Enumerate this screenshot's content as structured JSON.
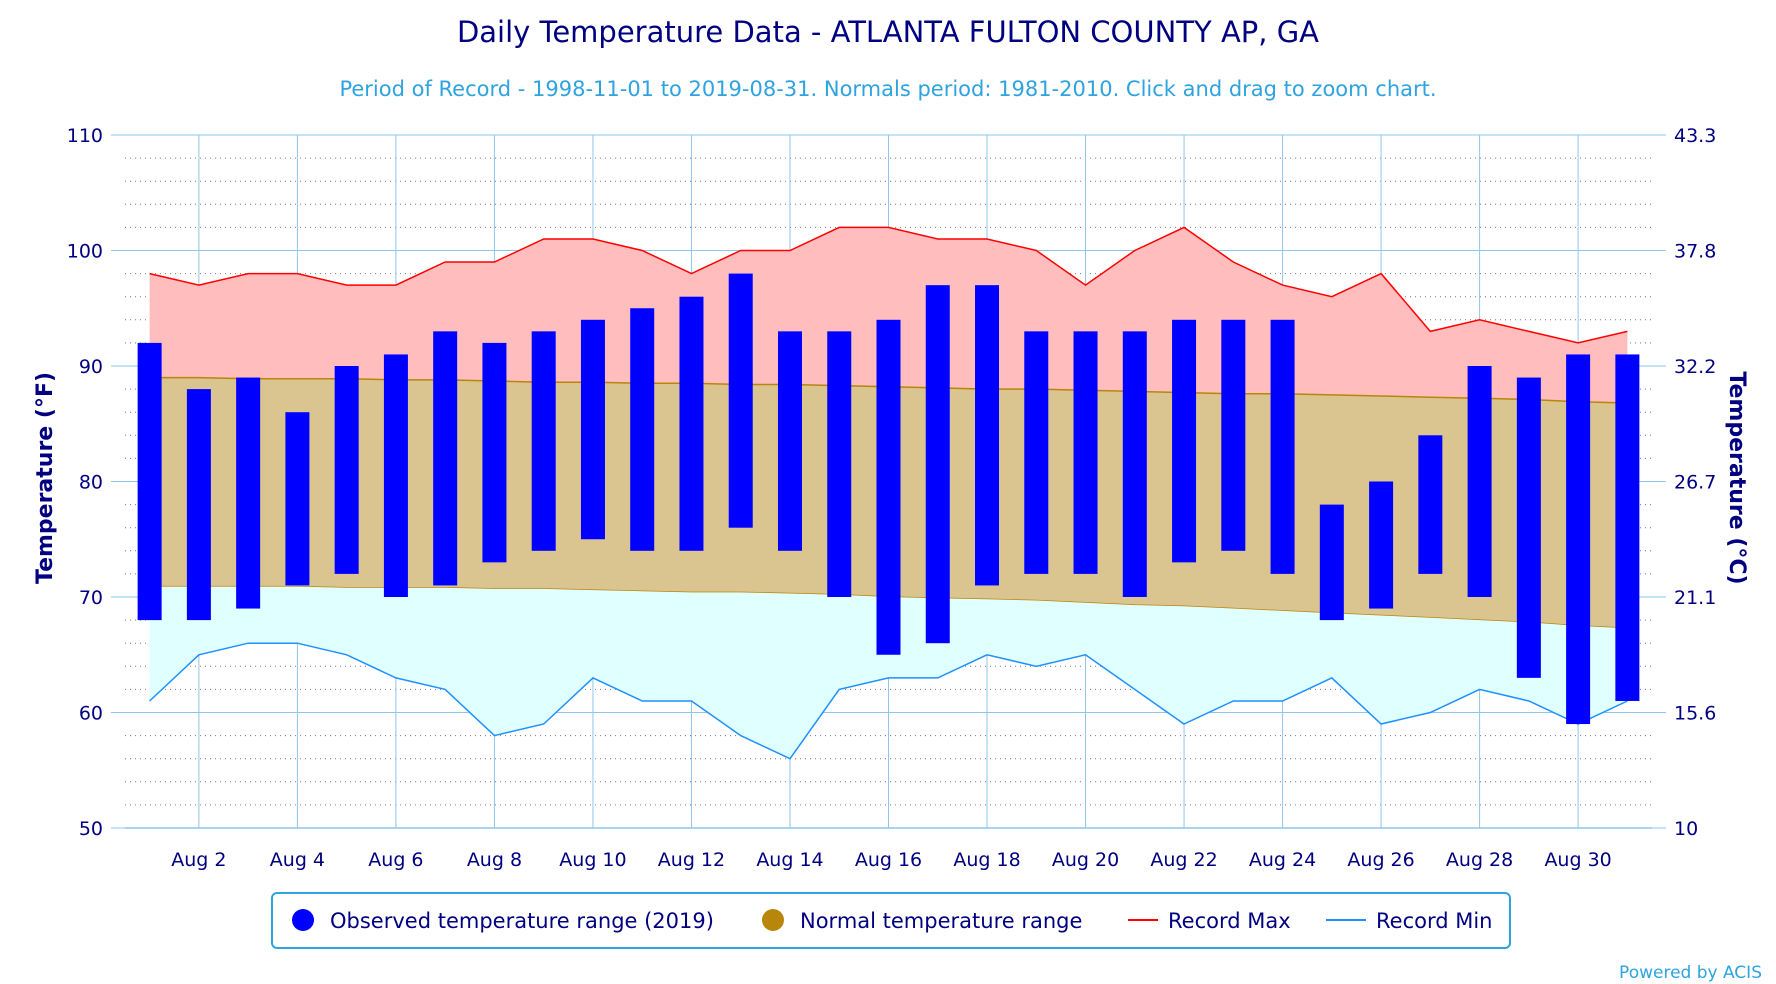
{
  "chart_data": {
    "type": "bar",
    "title": "Daily Temperature Data - ATLANTA FULTON COUNTY AP, GA",
    "subtitle": "Period of Record - 1998-11-01 to 2019-08-31. Normals period: 1981-2010. Click and drag to zoom chart.",
    "ylabel": "Temperature (°F)",
    "ylabel_right": "Temperature (°C)",
    "ylim": [
      50,
      110
    ],
    "yticks": [
      50,
      60,
      70,
      80,
      90,
      100,
      110
    ],
    "yticks_right": [
      "10",
      "15.6",
      "21.1",
      "26.7",
      "32.2",
      "37.8",
      "43.3"
    ],
    "xlim": [
      0.5,
      31.5
    ],
    "xticks": [
      2,
      4,
      6,
      8,
      10,
      12,
      14,
      16,
      18,
      20,
      22,
      24,
      26,
      28,
      30
    ],
    "xtick_labels": [
      "Aug 2",
      "Aug 4",
      "Aug 6",
      "Aug 8",
      "Aug 10",
      "Aug 12",
      "Aug 14",
      "Aug 16",
      "Aug 18",
      "Aug 20",
      "Aug 22",
      "Aug 24",
      "Aug 26",
      "Aug 28",
      "Aug 30"
    ],
    "grid": true,
    "legend_position": "bottom",
    "days": [
      1,
      2,
      3,
      4,
      5,
      6,
      7,
      8,
      9,
      10,
      11,
      12,
      13,
      14,
      15,
      16,
      17,
      18,
      19,
      20,
      21,
      22,
      23,
      24,
      25,
      26,
      27,
      28,
      29,
      30,
      31
    ],
    "observed_min": [
      68,
      68,
      69,
      71,
      72,
      70,
      71,
      73,
      74,
      75,
      74,
      74,
      76,
      74,
      70,
      65,
      66,
      71,
      72,
      72,
      70,
      73,
      74,
      72,
      68,
      69,
      72,
      70,
      63,
      59,
      61
    ],
    "observed_max": [
      92,
      88,
      89,
      86,
      90,
      91,
      93,
      92,
      93,
      94,
      95,
      96,
      98,
      93,
      93,
      94,
      97,
      97,
      93,
      93,
      93,
      94,
      94,
      94,
      78,
      80,
      84,
      90,
      89,
      91,
      91
    ],
    "normal_min": [
      70.9,
      70.9,
      70.9,
      70.9,
      70.8,
      70.8,
      70.8,
      70.7,
      70.7,
      70.6,
      70.5,
      70.4,
      70.4,
      70.3,
      70.2,
      70.0,
      69.9,
      69.8,
      69.7,
      69.5,
      69.3,
      69.2,
      69.0,
      68.8,
      68.6,
      68.4,
      68.2,
      68.0,
      67.8,
      67.5,
      67.3
    ],
    "normal_max": [
      89.0,
      89.0,
      88.9,
      88.9,
      88.9,
      88.8,
      88.8,
      88.7,
      88.6,
      88.6,
      88.5,
      88.5,
      88.4,
      88.4,
      88.3,
      88.2,
      88.1,
      88.0,
      88.0,
      87.9,
      87.8,
      87.7,
      87.6,
      87.6,
      87.5,
      87.4,
      87.3,
      87.2,
      87.1,
      86.9,
      86.8
    ],
    "record_max": [
      98,
      97,
      98,
      98,
      97,
      97,
      99,
      99,
      101,
      101,
      100,
      98,
      100,
      100,
      102,
      102,
      101,
      101,
      100,
      97,
      100,
      102,
      99,
      97,
      96,
      98,
      93,
      94,
      93,
      92,
      93
    ],
    "record_min": [
      61,
      65,
      66,
      66,
      65,
      63,
      62,
      58,
      59,
      63,
      61,
      61,
      58,
      56,
      62,
      63,
      63,
      65,
      64,
      65,
      62,
      59,
      61,
      61,
      63,
      59,
      60,
      62,
      61,
      59,
      61
    ],
    "series": [
      {
        "name": "Observed temperature range (2019)",
        "color": "#0000ff"
      },
      {
        "name": "Normal temperature range",
        "color": "#b8860b"
      },
      {
        "name": "Record Max",
        "color": "#ff0000"
      },
      {
        "name": "Record Min",
        "color": "#1e90ff"
      }
    ],
    "colors": {
      "title": "#000080",
      "subtitle": "#2ea3e0",
      "axis_text": "#000080",
      "grid": "#8ec7e8",
      "record_band": "#ffbdbd",
      "normal_band": "#dac48f",
      "min_band": "#e0ffff",
      "legend_border": "#2ea3e0"
    }
  },
  "credit": "Powered by ACIS"
}
